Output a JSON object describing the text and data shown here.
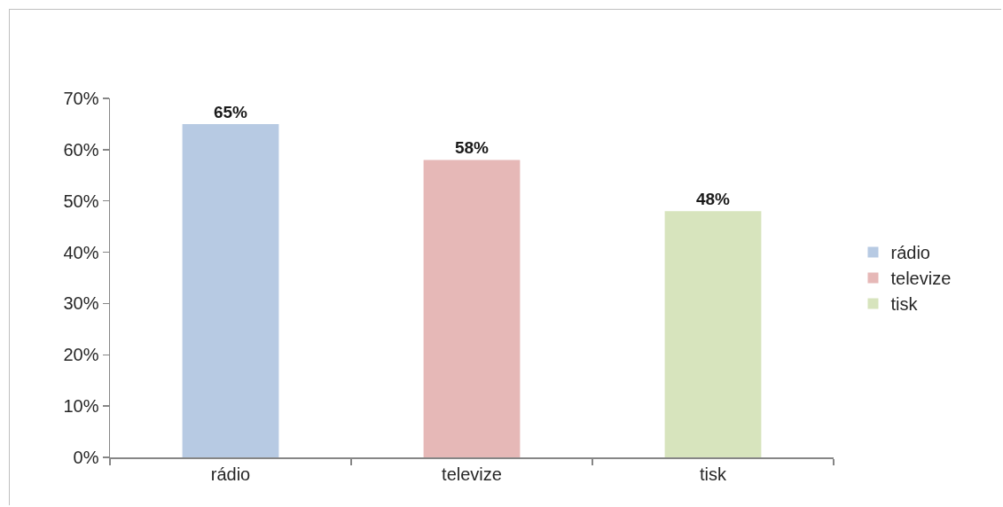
{
  "chart_data": {
    "type": "bar",
    "categories": [
      "rádio",
      "televize",
      "tisk"
    ],
    "series": [
      {
        "name": "rádio",
        "color": "#b7cae3",
        "values": [
          65,
          null,
          null
        ],
        "value_labels": [
          "65%",
          null,
          null
        ]
      },
      {
        "name": "televize",
        "color": "#e6b8b7",
        "values": [
          null,
          58,
          null
        ],
        "value_labels": [
          null,
          "58%",
          null
        ]
      },
      {
        "name": "tisk",
        "color": "#d7e4bd",
        "values": [
          null,
          null,
          48
        ],
        "value_labels": [
          null,
          null,
          "48%"
        ]
      }
    ],
    "ylim": [
      0,
      70
    ],
    "yticks": [
      {
        "value": 0,
        "label": "0%"
      },
      {
        "value": 10,
        "label": "10%"
      },
      {
        "value": 20,
        "label": "20%"
      },
      {
        "value": 30,
        "label": "30%"
      },
      {
        "value": 40,
        "label": "40%"
      },
      {
        "value": 50,
        "label": "50%"
      },
      {
        "value": 60,
        "label": "60%"
      },
      {
        "value": 70,
        "label": "70%"
      }
    ],
    "legend": "right"
  }
}
